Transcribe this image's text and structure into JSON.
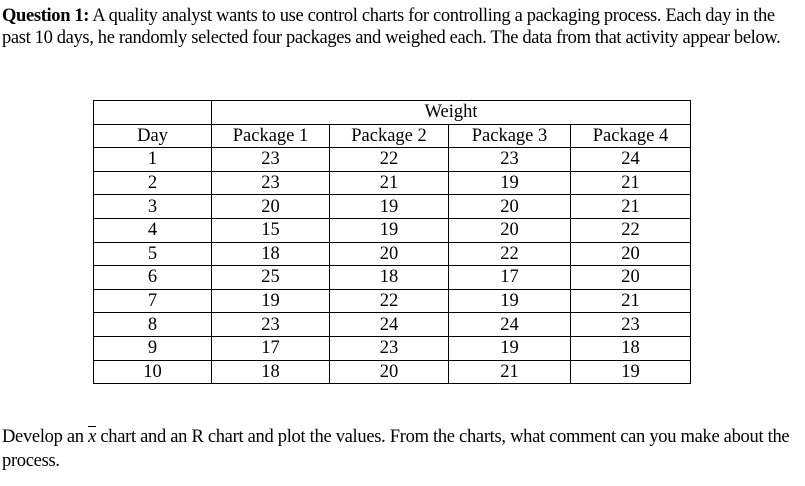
{
  "question": {
    "label": "Question 1:",
    "text": " A quality analyst wants to use control charts for controlling a packaging process. Each day in the past 10 days, he randomly selected four packages and weighed each. The data from that activity appear below."
  },
  "table": {
    "group_header": "Weight",
    "columns": [
      "Day",
      "Package 1",
      "Package 2",
      "Package 3",
      "Package 4"
    ],
    "rows": [
      [
        "1",
        "23",
        "22",
        "23",
        "24"
      ],
      [
        "2",
        "23",
        "21",
        "19",
        "21"
      ],
      [
        "3",
        "20",
        "19",
        "20",
        "21"
      ],
      [
        "4",
        "15",
        "19",
        "20",
        "22"
      ],
      [
        "5",
        "18",
        "20",
        "22",
        "20"
      ],
      [
        "6",
        "25",
        "18",
        "17",
        "20"
      ],
      [
        "7",
        "19",
        "22",
        "19",
        "21"
      ],
      [
        "8",
        "23",
        "24",
        "24",
        "23"
      ],
      [
        "9",
        "17",
        "23",
        "19",
        "18"
      ],
      [
        "10",
        "18",
        "20",
        "21",
        "19"
      ]
    ]
  },
  "instruction": {
    "part1": "Develop an ",
    "xbar_symbol": "x",
    "part2": " chart and an R chart and plot the values. From the charts, what comment can you make about the process."
  }
}
